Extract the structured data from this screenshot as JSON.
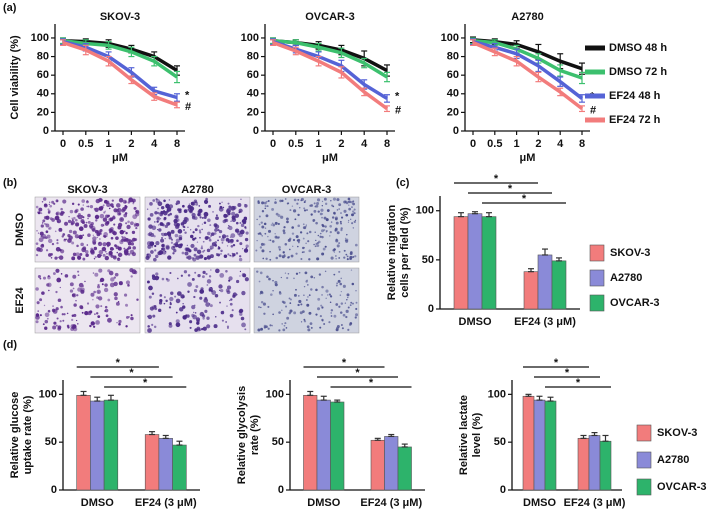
{
  "panel_labels": [
    "(a)",
    "(b)",
    "(c)",
    "(d)"
  ],
  "image_panel": {
    "columns": [
      "SKOV-3",
      "A2780",
      "OVCAR-3"
    ],
    "rows": [
      "DMSO",
      "EF24"
    ]
  },
  "chart_data": [
    {
      "type": "line",
      "title": "SKOV-3",
      "ylabel": "Cell viability (%)",
      "xlabel": "μM",
      "categories": [
        "0",
        "0.5",
        "1",
        "2",
        "4",
        "8"
      ],
      "ylim": [
        0,
        115
      ],
      "yticks": [
        0,
        20,
        40,
        60,
        80,
        100
      ],
      "series": [
        {
          "name": "DMSO 48 h",
          "color": "#111111",
          "values": [
            97,
            96,
            94,
            88,
            80,
            65
          ],
          "errors": [
            3,
            3,
            4,
            4,
            5,
            5
          ]
        },
        {
          "name": "DMSO 72 h",
          "color": "#3cc06e",
          "values": [
            97,
            94,
            92,
            85,
            75,
            58
          ],
          "errors": [
            3,
            4,
            4,
            5,
            5,
            6
          ]
        },
        {
          "name": "EF24  48 h",
          "color": "#5563d6",
          "values": [
            96,
            90,
            80,
            63,
            43,
            36
          ],
          "errors": [
            3,
            4,
            5,
            5,
            4,
            4
          ],
          "annotation": "*"
        },
        {
          "name": "EF24  72 h",
          "color": "#f27c7c",
          "values": [
            95,
            87,
            75,
            55,
            37,
            28
          ],
          "errors": [
            3,
            5,
            5,
            4,
            4,
            3
          ],
          "annotation": "#"
        }
      ]
    },
    {
      "type": "line",
      "title": "OVCAR-3",
      "xlabel": "μM",
      "categories": [
        "0",
        "0.5",
        "1",
        "2",
        "4",
        "8"
      ],
      "ylim": [
        0,
        115
      ],
      "yticks": [
        0,
        20,
        40,
        60,
        80,
        100
      ],
      "series": [
        {
          "name": "DMSO 48 h",
          "color": "#111111",
          "values": [
            97,
            95,
            92,
            87,
            78,
            65
          ],
          "errors": [
            3,
            3,
            4,
            5,
            8,
            6
          ]
        },
        {
          "name": "DMSO 72 h",
          "color": "#3cc06e",
          "values": [
            97,
            95,
            90,
            84,
            73,
            58
          ],
          "errors": [
            3,
            3,
            4,
            5,
            5,
            5
          ]
        },
        {
          "name": "EF24  48 h",
          "color": "#5563d6",
          "values": [
            96,
            88,
            80,
            70,
            50,
            35
          ],
          "errors": [
            3,
            4,
            5,
            6,
            5,
            4
          ],
          "annotation": "*"
        },
        {
          "name": "EF24  72 h",
          "color": "#f27c7c",
          "values": [
            95,
            86,
            75,
            63,
            42,
            24
          ],
          "errors": [
            3,
            4,
            5,
            6,
            4,
            3
          ],
          "annotation": "#"
        }
      ]
    },
    {
      "type": "line",
      "title": "A2780",
      "xlabel": "μM",
      "legend": "right",
      "categories": [
        "0",
        "0.5",
        "1",
        "2",
        "4",
        "8"
      ],
      "ylim": [
        0,
        115
      ],
      "yticks": [
        0,
        20,
        40,
        60,
        80,
        100
      ],
      "series": [
        {
          "name": "DMSO 48 h",
          "color": "#111111",
          "values": [
            98,
            96,
            93,
            85,
            75,
            67
          ],
          "errors": [
            3,
            3,
            4,
            8,
            8,
            6
          ]
        },
        {
          "name": "DMSO 72 h",
          "color": "#3cc06e",
          "values": [
            97,
            95,
            88,
            78,
            65,
            57
          ],
          "errors": [
            3,
            3,
            4,
            5,
            6,
            6
          ]
        },
        {
          "name": "EF24  48 h",
          "color": "#5563d6",
          "values": [
            96,
            90,
            83,
            70,
            53,
            35
          ],
          "errors": [
            3,
            4,
            5,
            6,
            5,
            4
          ],
          "annotation": "*"
        },
        {
          "name": "EF24  72 h",
          "color": "#f27c7c",
          "values": [
            95,
            85,
            75,
            58,
            42,
            24
          ],
          "errors": [
            3,
            4,
            5,
            5,
            4,
            3
          ],
          "annotation": "#"
        }
      ]
    },
    {
      "type": "bar",
      "ylabel": [
        "Relative migration",
        "cells per field (%)"
      ],
      "legend": "right",
      "categories": [
        "DMSO",
        "EF24 (3 μM)"
      ],
      "ylim": [
        0,
        115
      ],
      "yticks": [
        0,
        50,
        100
      ],
      "series": [
        {
          "name": "SKOV-3",
          "color": "#f27c7c",
          "values": [
            94,
            38
          ],
          "errors": [
            4,
            3
          ],
          "significance": "*"
        },
        {
          "name": "A2780",
          "color": "#8a8ad8",
          "values": [
            97,
            55
          ],
          "errors": [
            2,
            6
          ],
          "significance": "*"
        },
        {
          "name": "OVCAR-3",
          "color": "#2db36b",
          "values": [
            94,
            49
          ],
          "errors": [
            4,
            3
          ],
          "significance": "*"
        }
      ]
    },
    {
      "type": "bar",
      "ylabel": [
        "Relative glucose",
        "uptake rate (%)"
      ],
      "categories": [
        "DMSO",
        "EF24 (3 μM)"
      ],
      "ylim": [
        0,
        115
      ],
      "yticks": [
        0,
        50,
        100
      ],
      "series": [
        {
          "name": "SKOV-3",
          "color": "#f27c7c",
          "values": [
            99,
            58
          ],
          "errors": [
            4,
            3
          ],
          "significance": "*"
        },
        {
          "name": "A2780",
          "color": "#8a8ad8",
          "values": [
            93,
            54
          ],
          "errors": [
            4,
            3
          ],
          "significance": "*"
        },
        {
          "name": "OVCAR-3",
          "color": "#2db36b",
          "values": [
            94,
            47
          ],
          "errors": [
            5,
            4
          ],
          "significance": "*"
        }
      ]
    },
    {
      "type": "bar",
      "ylabel": [
        "Relative glycolysis",
        "rate (%)"
      ],
      "categories": [
        "DMSO",
        "EF24 (3 μM)"
      ],
      "ylim": [
        0,
        115
      ],
      "yticks": [
        0,
        50,
        100
      ],
      "series": [
        {
          "name": "SKOV-3",
          "color": "#f27c7c",
          "values": [
            99,
            52
          ],
          "errors": [
            4,
            2
          ],
          "significance": "*"
        },
        {
          "name": "A2780",
          "color": "#8a8ad8",
          "values": [
            94,
            56
          ],
          "errors": [
            4,
            2
          ],
          "significance": "*"
        },
        {
          "name": "OVCAR-3",
          "color": "#2db36b",
          "values": [
            92,
            45
          ],
          "errors": [
            2,
            3
          ],
          "significance": "*"
        }
      ]
    },
    {
      "type": "bar",
      "ylabel": [
        "Relative lactate",
        "level (%)"
      ],
      "legend": "right",
      "categories": [
        "DMSO",
        "EF24 (3 μM)"
      ],
      "ylim": [
        0,
        115
      ],
      "yticks": [
        0,
        50,
        100
      ],
      "series": [
        {
          "name": "SKOV-3",
          "color": "#f27c7c",
          "values": [
            98,
            54
          ],
          "errors": [
            2,
            3
          ],
          "significance": "*"
        },
        {
          "name": "A2780",
          "color": "#8a8ad8",
          "values": [
            94,
            57
          ],
          "errors": [
            4,
            3
          ],
          "significance": "*"
        },
        {
          "name": "OVCAR-3",
          "color": "#2db36b",
          "values": [
            93,
            51
          ],
          "errors": [
            4,
            6
          ],
          "significance": "*"
        }
      ]
    }
  ]
}
